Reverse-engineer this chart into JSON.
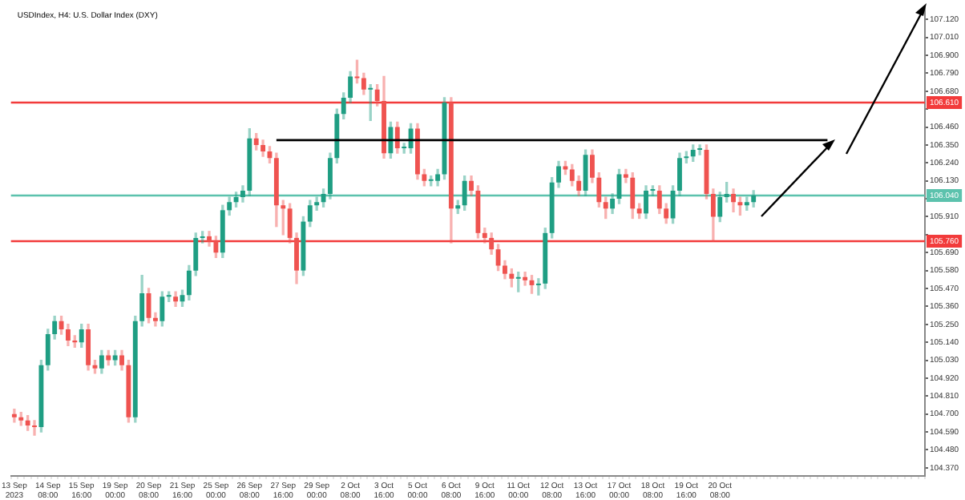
{
  "chart_data": {
    "type": "candlestick",
    "title": "USDIndex, H4: U.S. Dollar Index (DXY)",
    "categories": [
      "13 Sep 2023",
      null,
      null,
      null,
      null,
      "14 Sep 08:00",
      null,
      null,
      null,
      null,
      "15 Sep 16:00",
      null,
      null,
      null,
      null,
      "19 Sep 00:00",
      null,
      null,
      null,
      null,
      "20 Sep 08:00",
      null,
      null,
      null,
      null,
      "21 Sep 16:00",
      null,
      null,
      null,
      null,
      "25 Sep 00:00",
      null,
      null,
      null,
      null,
      "26 Sep 08:00",
      null,
      null,
      null,
      null,
      "27 Sep 16:00",
      null,
      null,
      null,
      null,
      "29 Sep 00:00",
      null,
      null,
      null,
      null,
      "2 Oct 08:00",
      null,
      null,
      null,
      null,
      "3 Oct 16:00",
      null,
      null,
      null,
      null,
      "5 Oct 00:00",
      null,
      null,
      null,
      null,
      "6 Oct 08:00",
      null,
      null,
      null,
      null,
      "9 Oct 16:00",
      null,
      null,
      null,
      null,
      "11 Oct 00:00",
      null,
      null,
      null,
      null,
      "12 Oct 08:00",
      null,
      null,
      null,
      null,
      "13 Oct 16:00",
      null,
      null,
      null,
      null,
      "17 Oct 00:00",
      null,
      null,
      null,
      null,
      "18 Oct 08:00",
      null,
      null,
      null,
      null,
      "19 Oct 16:00",
      null,
      null,
      null,
      null,
      "20 Oct 08:00",
      null,
      null,
      null,
      null,
      null,
      null,
      null,
      null,
      null,
      null,
      null,
      null,
      null,
      null,
      null,
      null,
      null,
      null,
      null,
      null,
      null,
      null,
      null,
      null,
      null,
      null,
      null,
      null,
      null,
      null
    ],
    "colors": [
      "#ef5350",
      "#ef5350",
      "#ef5350",
      "#ef5350",
      "#1f9e83",
      "#1f9e83",
      "#1f9e83",
      "#ef5350",
      "#ef5350",
      "#ef5350",
      "#1f9e83",
      "#ef5350",
      "#ef5350",
      "#1f9e83",
      "#ef5350",
      "#1f9e83",
      "#ef5350",
      "#ef5350",
      "#1f9e83",
      "#1f9e83",
      "#ef5350",
      "#ef5350",
      "#1f9e83",
      "#1f9e83",
      "#ef5350",
      "#1f9e83",
      "#1f9e83",
      "#1f9e83",
      "#1f9e83",
      "#ef5350",
      "#ef5350",
      "#1f9e83",
      "#1f9e83",
      "#1f9e83",
      "#1f9e83",
      "#1f9e83",
      "#ef5350",
      "#ef5350",
      "#ef5350",
      "#ef5350",
      "#ef5350",
      "#ef5350",
      "#ef5350",
      "#1f9e83",
      "#1f9e83",
      "#1f9e83",
      "#1f9e83",
      "#1f9e83",
      "#1f9e83",
      "#1f9e83",
      "#1f9e83",
      "#ef5350",
      "#ef5350",
      "#1f9e83",
      "#ef5350",
      "#ef5350",
      "#1f9e83",
      "#ef5350",
      "#1f9e83",
      "#1f9e83",
      "#ef5350",
      "#ef5350",
      "#1f9e83",
      "#1f9e83",
      "#1f9e83",
      "#ef5350",
      "#1f9e83",
      "#1f9e83",
      "#ef5350",
      "#ef5350",
      "#ef5350",
      "#ef5350",
      "#ef5350",
      "#ef5350",
      "#ef5350",
      "#1f9e83",
      "#ef5350",
      "#ef5350",
      "#1f9e83",
      "#1f9e83",
      "#1f9e83",
      "#1f9e83",
      "#ef5350",
      "#ef5350",
      "#ef5350",
      "#1f9e83",
      "#ef5350",
      "#ef5350",
      "#ef5350",
      "#1f9e83",
      "#1f9e83",
      "#ef5350",
      "#ef5350",
      "#ef5350",
      "#1f9e83",
      "#1f9e83",
      "#ef5350",
      "#ef5350",
      "#1f9e83",
      "#1f9e83",
      "#1f9e83",
      "#1f9e83",
      "#1f9e83",
      "#ef5350",
      "#ef5350",
      "#1f9e83",
      "#1f9e83",
      "#ef5350",
      "#ef5350",
      "#1f9e83",
      "#1f9e83",
      null,
      null,
      null,
      null,
      null,
      null,
      null,
      null,
      null,
      null,
      null,
      null,
      null,
      null,
      null,
      null,
      null,
      null,
      null,
      null,
      null,
      null,
      null,
      null,
      null
    ],
    "ohlc": [
      [
        104.7,
        104.73,
        104.65,
        104.68
      ],
      [
        104.68,
        104.71,
        104.63,
        104.66
      ],
      [
        104.66,
        104.69,
        104.6,
        104.63
      ],
      [
        104.63,
        104.66,
        104.57,
        104.62
      ],
      [
        104.62,
        105.03,
        104.59,
        105.0
      ],
      [
        105.0,
        105.22,
        104.97,
        105.19
      ],
      [
        105.19,
        105.3,
        105.16,
        105.27
      ],
      [
        105.27,
        105.3,
        105.19,
        105.22
      ],
      [
        105.22,
        105.25,
        105.12,
        105.15
      ],
      [
        105.15,
        105.18,
        105.11,
        105.14
      ],
      [
        105.14,
        105.25,
        105.11,
        105.22
      ],
      [
        105.22,
        105.25,
        104.97,
        105.0
      ],
      [
        105.0,
        105.03,
        104.95,
        104.98
      ],
      [
        104.98,
        105.09,
        104.95,
        105.06
      ],
      [
        105.06,
        105.09,
        105.0,
        105.03
      ],
      [
        105.03,
        105.09,
        105.0,
        105.06
      ],
      [
        105.06,
        105.09,
        104.97,
        105.0
      ],
      [
        105.0,
        105.03,
        104.65,
        104.68
      ],
      [
        104.68,
        105.3,
        104.65,
        105.27
      ],
      [
        105.27,
        105.55,
        105.24,
        105.44
      ],
      [
        105.44,
        105.47,
        105.26,
        105.29
      ],
      [
        105.29,
        105.32,
        105.24,
        105.27
      ],
      [
        105.27,
        105.45,
        105.24,
        105.42
      ],
      [
        105.42,
        105.45,
        105.39,
        105.42
      ],
      [
        105.42,
        105.45,
        105.36,
        105.39
      ],
      [
        105.39,
        105.46,
        105.36,
        105.43
      ],
      [
        105.43,
        105.61,
        105.4,
        105.58
      ],
      [
        105.58,
        105.81,
        105.55,
        105.78
      ],
      [
        105.78,
        105.82,
        105.75,
        105.79
      ],
      [
        105.79,
        105.82,
        105.73,
        105.76
      ],
      [
        105.76,
        105.79,
        105.66,
        105.69
      ],
      [
        105.69,
        105.98,
        105.66,
        105.95
      ],
      [
        105.95,
        106.03,
        105.92,
        106.0
      ],
      [
        106.0,
        106.06,
        105.97,
        106.03
      ],
      [
        106.03,
        106.1,
        106.0,
        106.07
      ],
      [
        106.07,
        106.45,
        106.04,
        106.39
      ],
      [
        106.39,
        106.42,
        106.32,
        106.35
      ],
      [
        106.35,
        106.38,
        106.28,
        106.31
      ],
      [
        106.31,
        106.34,
        106.24,
        106.27
      ],
      [
        106.27,
        106.3,
        105.85,
        105.98
      ],
      [
        105.98,
        106.01,
        105.8,
        105.96
      ],
      [
        105.96,
        105.99,
        105.75,
        105.78
      ],
      [
        105.78,
        105.81,
        105.5,
        105.58
      ],
      [
        105.58,
        105.91,
        105.55,
        105.88
      ],
      [
        105.88,
        106.01,
        105.85,
        105.98
      ],
      [
        105.98,
        106.03,
        105.95,
        106.0
      ],
      [
        106.0,
        106.08,
        105.97,
        106.05
      ],
      [
        106.05,
        106.3,
        106.02,
        106.27
      ],
      [
        106.27,
        106.57,
        106.24,
        106.54
      ],
      [
        106.54,
        106.67,
        106.51,
        106.64
      ],
      [
        106.64,
        106.8,
        106.61,
        106.77
      ],
      [
        106.77,
        106.87,
        106.73,
        106.76
      ],
      [
        106.76,
        106.79,
        106.66,
        106.69
      ],
      [
        106.69,
        106.72,
        106.5,
        106.69
      ],
      [
        106.69,
        106.72,
        106.59,
        106.62
      ],
      [
        106.62,
        106.77,
        106.27,
        106.3
      ],
      [
        106.3,
        106.49,
        106.27,
        106.46
      ],
      [
        106.46,
        106.49,
        106.3,
        106.33
      ],
      [
        106.33,
        106.36,
        106.3,
        106.33
      ],
      [
        106.33,
        106.48,
        106.3,
        106.45
      ],
      [
        106.45,
        106.48,
        106.14,
        106.17
      ],
      [
        106.17,
        106.2,
        106.1,
        106.13
      ],
      [
        106.13,
        106.16,
        106.1,
        106.13
      ],
      [
        106.13,
        106.2,
        106.1,
        106.17
      ],
      [
        106.17,
        106.64,
        106.14,
        106.61
      ],
      [
        106.61,
        106.64,
        105.75,
        105.96
      ],
      [
        105.96,
        106.01,
        105.93,
        105.98
      ],
      [
        105.98,
        106.16,
        105.95,
        106.13
      ],
      [
        106.13,
        106.16,
        106.04,
        106.07
      ],
      [
        106.07,
        106.1,
        105.78,
        105.81
      ],
      [
        105.81,
        105.84,
        105.75,
        105.78
      ],
      [
        105.78,
        105.81,
        105.68,
        105.71
      ],
      [
        105.71,
        105.74,
        105.58,
        105.61
      ],
      [
        105.61,
        105.64,
        105.53,
        105.56
      ],
      [
        105.56,
        105.59,
        105.48,
        105.53
      ],
      [
        105.53,
        105.57,
        105.45,
        105.54
      ],
      [
        105.54,
        105.57,
        105.49,
        105.52
      ],
      [
        105.52,
        105.55,
        105.44,
        105.49
      ],
      [
        105.49,
        105.53,
        105.43,
        105.5
      ],
      [
        105.5,
        105.84,
        105.47,
        105.81
      ],
      [
        105.81,
        106.15,
        105.78,
        106.12
      ],
      [
        106.12,
        106.25,
        106.09,
        106.22
      ],
      [
        106.22,
        106.25,
        106.17,
        106.2
      ],
      [
        106.2,
        106.23,
        106.1,
        106.13
      ],
      [
        106.13,
        106.16,
        106.04,
        106.07
      ],
      [
        106.07,
        106.32,
        106.04,
        106.29
      ],
      [
        106.29,
        106.32,
        106.12,
        106.15
      ],
      [
        106.15,
        106.18,
        105.97,
        106.0
      ],
      [
        106.0,
        106.03,
        105.9,
        105.96
      ],
      [
        105.96,
        106.05,
        105.93,
        106.02
      ],
      [
        106.02,
        106.2,
        105.99,
        106.17
      ],
      [
        106.17,
        106.2,
        106.12,
        106.15
      ],
      [
        106.15,
        106.18,
        105.9,
        105.96
      ],
      [
        105.96,
        105.99,
        105.9,
        105.93
      ],
      [
        105.93,
        106.1,
        105.9,
        106.07
      ],
      [
        106.07,
        106.1,
        106.04,
        106.07
      ],
      [
        106.07,
        106.1,
        105.93,
        105.96
      ],
      [
        105.96,
        105.99,
        105.87,
        105.9
      ],
      [
        105.9,
        106.1,
        105.87,
        106.07
      ],
      [
        106.07,
        106.3,
        106.04,
        106.27
      ],
      [
        106.27,
        106.31,
        106.24,
        106.28
      ],
      [
        106.28,
        106.35,
        106.25,
        106.32
      ],
      [
        106.32,
        106.35,
        106.29,
        106.32
      ],
      [
        106.32,
        106.35,
        106.02,
        106.05
      ],
      [
        106.05,
        106.08,
        105.76,
        105.91
      ],
      [
        105.91,
        106.06,
        105.88,
        106.03
      ],
      [
        106.03,
        106.12,
        106.0,
        106.05
      ],
      [
        106.05,
        106.08,
        105.94,
        106.0
      ],
      [
        106.0,
        106.03,
        105.92,
        105.98
      ],
      [
        105.98,
        106.03,
        105.95,
        106.0
      ],
      [
        106.0,
        106.07,
        105.97,
        106.04
      ],
      null,
      null,
      null,
      null,
      null,
      null,
      null,
      null,
      null,
      null,
      null,
      null,
      null,
      null,
      null,
      null,
      null,
      null,
      null,
      null,
      null,
      null,
      null,
      null,
      null
    ],
    "series": [
      {
        "type": "line",
        "color": "#000000",
        "values": [
          null,
          null,
          null,
          null,
          null,
          null,
          null,
          null,
          null,
          null,
          null,
          null,
          null,
          null,
          null,
          null,
          null,
          null,
          null,
          null,
          null,
          null,
          null,
          null,
          null,
          null,
          null,
          null,
          null,
          null,
          null,
          null,
          null,
          null,
          null,
          null,
          null,
          null,
          null,
          106.38,
          106.38,
          106.38,
          106.38,
          106.38,
          106.38,
          106.38,
          106.38,
          106.38,
          106.38,
          106.38,
          106.38,
          106.38,
          106.38,
          106.38,
          106.38,
          106.38,
          106.38,
          106.38,
          106.38,
          106.38,
          106.38,
          106.38,
          106.38,
          106.38,
          106.38,
          106.38,
          106.38,
          106.38,
          106.38,
          106.38,
          106.38,
          106.38,
          106.38,
          106.38,
          106.38,
          106.38,
          106.38,
          106.38,
          106.38,
          106.38,
          106.38,
          106.38,
          106.38,
          106.38,
          106.38,
          106.38,
          106.38,
          106.38,
          106.38,
          106.38,
          106.38,
          106.38,
          106.38,
          106.38,
          106.38,
          106.38,
          106.38,
          106.38,
          106.38,
          106.38,
          106.38,
          106.38,
          106.38,
          106.38,
          106.38,
          106.38,
          106.38,
          106.38,
          106.38,
          106.38,
          106.38,
          106.38,
          106.38,
          106.38,
          106.38,
          106.38,
          106.38,
          106.38,
          106.38,
          106.38,
          106.38,
          106.38,
          null,
          null,
          null,
          null,
          null,
          null,
          null,
          null,
          null,
          null,
          null,
          null,
          null,
          null
        ]
      }
    ],
    "ref_lines": [
      {
        "axis": "y",
        "value": 106.61,
        "label": "106.610",
        "color": "#f23b3b"
      },
      {
        "axis": "y",
        "value": 105.76,
        "label": "105.760",
        "color": "#f23b3b"
      },
      {
        "axis": "y",
        "value": 106.04,
        "label": "106.040",
        "color": "#5cc2ad"
      }
    ],
    "ylim": [
      104.32,
      107.2
    ],
    "yticks": [
      {
        "value": 104.37,
        "label": "104.370"
      },
      {
        "value": 104.48,
        "label": "104.480"
      },
      {
        "value": 104.59,
        "label": "104.590"
      },
      {
        "value": 104.7,
        "label": "104.700"
      },
      {
        "value": 104.81,
        "label": "104.810"
      },
      {
        "value": 104.92,
        "label": "104.920"
      },
      {
        "value": 105.03,
        "label": "105.030"
      },
      {
        "value": 105.14,
        "label": "105.140"
      },
      {
        "value": 105.25,
        "label": "105.250"
      },
      {
        "value": 105.36,
        "label": "105.360"
      },
      {
        "value": 105.47,
        "label": "105.470"
      },
      {
        "value": 105.58,
        "label": "105.580"
      },
      {
        "value": 105.69,
        "label": "105.690"
      },
      {
        "value": 105.8,
        "label": null
      },
      {
        "value": 105.91,
        "label": "105.910"
      },
      {
        "value": 106.02,
        "label": null
      },
      {
        "value": 106.13,
        "label": "106.130"
      },
      {
        "value": 106.24,
        "label": "106.240"
      },
      {
        "value": 106.35,
        "label": "106.350"
      },
      {
        "value": 106.46,
        "label": "106.460"
      },
      {
        "value": 106.57,
        "label": null
      },
      {
        "value": 106.68,
        "label": "106.680"
      },
      {
        "value": 106.79,
        "label": "106.790"
      },
      {
        "value": 106.9,
        "label": "106.900"
      },
      {
        "value": 107.01,
        "label": "107.010"
      },
      {
        "value": 107.12,
        "label": "107.120"
      }
    ],
    "grid": false,
    "legend": false
  }
}
